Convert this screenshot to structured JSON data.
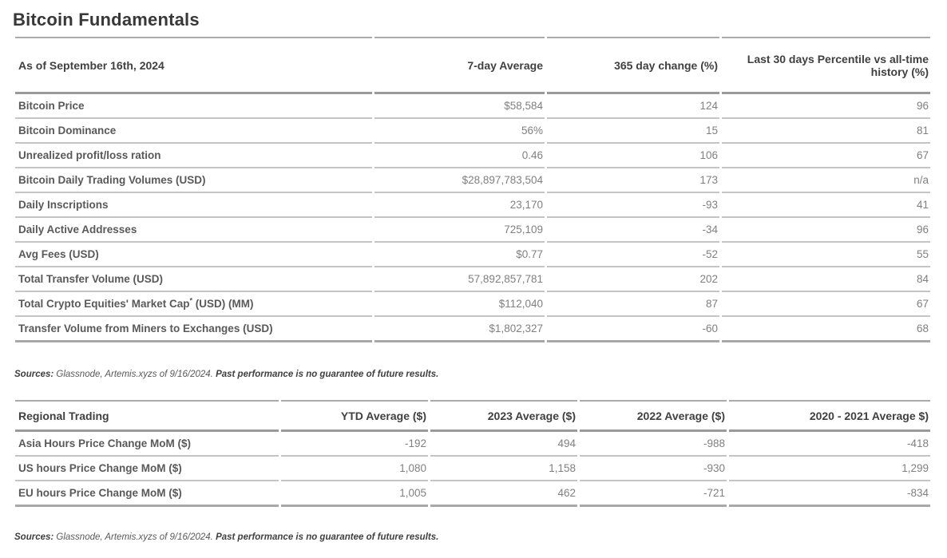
{
  "title": "Bitcoin Fundamentals",
  "colors": {
    "title_text": "#383838",
    "header_text": "#404040",
    "label_text": "#595959",
    "value_text": "#808080",
    "border_row": "#c4c4c4",
    "border_header": "#9a9a9a"
  },
  "table1": {
    "headers": {
      "col0": "As of September 16th, 2024",
      "col1": "7-day Average",
      "col2": "365 day change (%)",
      "col3": "Last 30 days Percentile vs all-time history (%)"
    },
    "rows": [
      {
        "label": "Bitcoin Price",
        "avg": "$58,584",
        "change": "124",
        "percentile": "96"
      },
      {
        "label": "Bitcoin Dominance",
        "avg": "56%",
        "change": "15",
        "percentile": "81"
      },
      {
        "label": "Unrealized profit/loss ration",
        "avg": "0.46",
        "change": "106",
        "percentile": "67"
      },
      {
        "label": "Bitcoin Daily Trading Volumes (USD)",
        "avg": "$28,897,783,504",
        "change": "173",
        "percentile": "n/a"
      },
      {
        "label": "Daily Inscriptions",
        "avg": "23,170",
        "change": "-93",
        "percentile": "41"
      },
      {
        "label": "Daily Active Addresses",
        "avg": "725,109",
        "change": "-34",
        "percentile": "96"
      },
      {
        "label": "Avg Fees (USD)",
        "avg": "$0.77",
        "change": "-52",
        "percentile": "55"
      },
      {
        "label": "Total Transfer Volume (USD)",
        "avg": "57,892,857,781",
        "change": "202",
        "percentile": "84"
      },
      {
        "label": "Total Crypto Equities' Market Cap",
        "label_sup": "*",
        "label_suffix": " (USD) (MM)",
        "avg": "$112,040",
        "change": "87",
        "percentile": "67"
      },
      {
        "label": "Transfer Volume from Miners to Exchanges (USD)",
        "avg": "$1,802,327",
        "change": "-60",
        "percentile": "68"
      }
    ]
  },
  "sources1": {
    "prefix": "Sources:",
    "body": " Glassnode, Artemis.xyzs of 9/16/2024. ",
    "emphasis": "Past performance is no guarantee of future results."
  },
  "table2": {
    "headers": {
      "col0": "Regional Trading",
      "col1": "YTD Average ($)",
      "col2": "2023 Average ($)",
      "col3": "2022 Average ($)",
      "col4": "2020 - 2021 Average $)"
    },
    "rows": [
      {
        "label": "Asia Hours Price Change MoM ($)",
        "ytd": "-192",
        "y2023": "494",
        "y2022": "-988",
        "y2020_2021": "-418"
      },
      {
        "label": "US hours Price Change MoM ($)",
        "ytd": "1,080",
        "y2023": "1,158",
        "y2022": "-930",
        "y2020_2021": "1,299"
      },
      {
        "label": "EU hours Price Change MoM ($)",
        "ytd": "1,005",
        "y2023": "462",
        "y2022": "-721",
        "y2020_2021": "-834"
      }
    ]
  },
  "sources2": {
    "prefix": "Sources:",
    "body": " Glassnode, Artemis.xyzs of 9/16/2024. ",
    "emphasis": "Past performance is no guarantee of future results."
  }
}
